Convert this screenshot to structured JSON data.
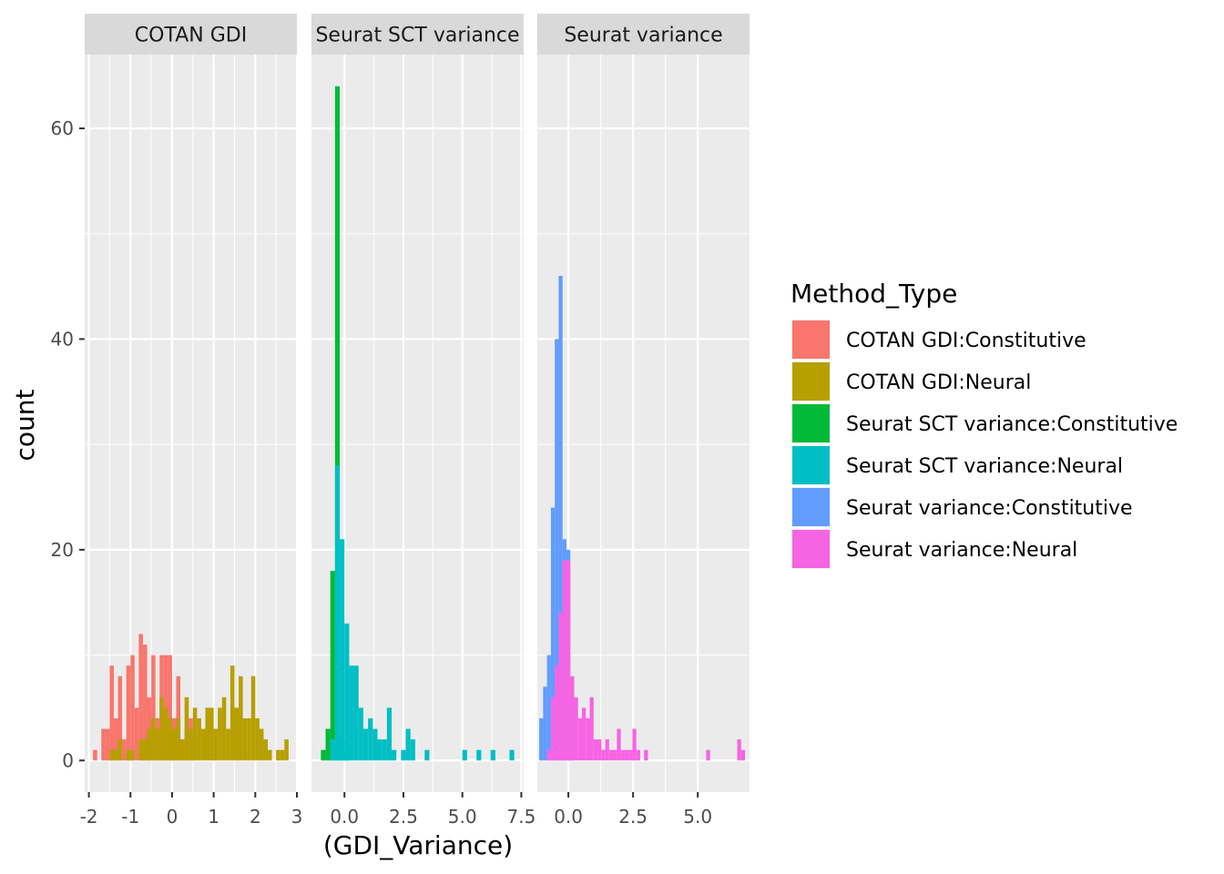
{
  "chart_data": {
    "type": "bar",
    "subtype": "faceted-histogram",
    "xlabel": "(GDI_Variance)",
    "ylabel": "count",
    "ylim": [
      -3,
      67
    ],
    "y_ticks": [
      0,
      20,
      40,
      60
    ],
    "y_tick_labels": [
      "0",
      "20",
      "40",
      "60"
    ],
    "grid": true,
    "legend": {
      "title": "Method_Type",
      "position": "right",
      "entries": [
        {
          "label": "COTAN GDI:Constitutive",
          "color": "#F8766D"
        },
        {
          "label": "COTAN GDI:Neural",
          "color": "#B79F00"
        },
        {
          "label": "Seurat SCT variance:Constitutive",
          "color": "#00BA38"
        },
        {
          "label": "Seurat SCT variance:Neural",
          "color": "#00BFC4"
        },
        {
          "label": "Seurat variance:Constitutive",
          "color": "#619CFF"
        },
        {
          "label": "Seurat variance:Neural",
          "color": "#F564E3"
        }
      ]
    },
    "facets": [
      {
        "name": "COTAN GDI",
        "xlim": [
          -2.1,
          3.0
        ],
        "x_ticks": [
          -2,
          -1,
          0,
          1,
          2,
          3
        ],
        "x_tick_labels": [
          "-2",
          "-1",
          "0",
          "1",
          "2",
          "3"
        ],
        "binwidth": 0.1,
        "series": [
          {
            "name": "COTAN GDI:Constitutive",
            "color": "#F8766D",
            "bins": [
              {
                "x": -1.85,
                "count": 1
              },
              {
                "x": -1.65,
                "count": 3
              },
              {
                "x": -1.55,
                "count": 3
              },
              {
                "x": -1.45,
                "count": 9
              },
              {
                "x": -1.35,
                "count": 4
              },
              {
                "x": -1.25,
                "count": 8
              },
              {
                "x": -1.15,
                "count": 2
              },
              {
                "x": -1.05,
                "count": 9
              },
              {
                "x": -0.95,
                "count": 10
              },
              {
                "x": -0.85,
                "count": 5
              },
              {
                "x": -0.75,
                "count": 12
              },
              {
                "x": -0.65,
                "count": 11
              },
              {
                "x": -0.55,
                "count": 6
              },
              {
                "x": -0.45,
                "count": 10
              },
              {
                "x": -0.35,
                "count": 4
              },
              {
                "x": -0.25,
                "count": 10
              },
              {
                "x": -0.15,
                "count": 10
              },
              {
                "x": -0.05,
                "count": 10
              },
              {
                "x": 0.05,
                "count": 4
              },
              {
                "x": 0.15,
                "count": 8
              },
              {
                "x": 0.25,
                "count": 2
              },
              {
                "x": 0.35,
                "count": 3
              },
              {
                "x": 0.45,
                "count": 4
              }
            ]
          },
          {
            "name": "COTAN GDI:Neural",
            "color": "#B79F00",
            "bins": [
              {
                "x": -1.45,
                "count": 1
              },
              {
                "x": -1.35,
                "count": 1
              },
              {
                "x": -1.25,
                "count": 2
              },
              {
                "x": -1.05,
                "count": 1
              },
              {
                "x": -0.95,
                "count": 1
              },
              {
                "x": -0.75,
                "count": 2
              },
              {
                "x": -0.65,
                "count": 2
              },
              {
                "x": -0.55,
                "count": 3
              },
              {
                "x": -0.45,
                "count": 4
              },
              {
                "x": -0.35,
                "count": 3
              },
              {
                "x": -0.25,
                "count": 6
              },
              {
                "x": -0.15,
                "count": 5
              },
              {
                "x": -0.05,
                "count": 4
              },
              {
                "x": 0.05,
                "count": 3
              },
              {
                "x": 0.15,
                "count": 4
              },
              {
                "x": 0.25,
                "count": 2
              },
              {
                "x": 0.35,
                "count": 6
              },
              {
                "x": 0.45,
                "count": 3
              },
              {
                "x": 0.55,
                "count": 5
              },
              {
                "x": 0.65,
                "count": 4
              },
              {
                "x": 0.75,
                "count": 3
              },
              {
                "x": 0.85,
                "count": 5
              },
              {
                "x": 0.95,
                "count": 5
              },
              {
                "x": 1.05,
                "count": 3
              },
              {
                "x": 1.15,
                "count": 5
              },
              {
                "x": 1.25,
                "count": 6
              },
              {
                "x": 1.35,
                "count": 3
              },
              {
                "x": 1.45,
                "count": 9
              },
              {
                "x": 1.55,
                "count": 5
              },
              {
                "x": 1.65,
                "count": 8
              },
              {
                "x": 1.75,
                "count": 4
              },
              {
                "x": 1.85,
                "count": 4
              },
              {
                "x": 1.95,
                "count": 8
              },
              {
                "x": 2.05,
                "count": 4
              },
              {
                "x": 2.15,
                "count": 3
              },
              {
                "x": 2.25,
                "count": 2
              },
              {
                "x": 2.35,
                "count": 1
              },
              {
                "x": 2.55,
                "count": 1
              },
              {
                "x": 2.65,
                "count": 1
              },
              {
                "x": 2.75,
                "count": 2
              }
            ]
          }
        ]
      },
      {
        "name": "Seurat SCT variance",
        "xlim": [
          -1.4,
          7.6
        ],
        "x_ticks": [
          0,
          2.5,
          5,
          7.5
        ],
        "x_tick_labels": [
          "0.0",
          "2.5",
          "5.0",
          "7.5"
        ],
        "binwidth": 0.2,
        "series": [
          {
            "name": "Seurat SCT variance:Constitutive",
            "color": "#00BA38",
            "bins": [
              {
                "x": -0.9,
                "count": 1
              },
              {
                "x": -0.7,
                "count": 3
              },
              {
                "x": -0.5,
                "count": 18
              },
              {
                "x": -0.3,
                "count": 64
              },
              {
                "x": -0.1,
                "count": 2
              },
              {
                "x": 0.1,
                "count": 1
              }
            ]
          },
          {
            "name": "Seurat SCT variance:Neural",
            "color": "#00BFC4",
            "bins": [
              {
                "x": -0.5,
                "count": 2
              },
              {
                "x": -0.3,
                "count": 28
              },
              {
                "x": -0.1,
                "count": 21
              },
              {
                "x": 0.1,
                "count": 13
              },
              {
                "x": 0.3,
                "count": 9
              },
              {
                "x": 0.5,
                "count": 9
              },
              {
                "x": 0.7,
                "count": 5
              },
              {
                "x": 0.9,
                "count": 3
              },
              {
                "x": 1.1,
                "count": 4
              },
              {
                "x": 1.3,
                "count": 3
              },
              {
                "x": 1.5,
                "count": 2
              },
              {
                "x": 1.7,
                "count": 2
              },
              {
                "x": 1.9,
                "count": 5
              },
              {
                "x": 2.1,
                "count": 1
              },
              {
                "x": 2.5,
                "count": 1
              },
              {
                "x": 2.7,
                "count": 3
              },
              {
                "x": 2.9,
                "count": 2
              },
              {
                "x": 3.5,
                "count": 1
              },
              {
                "x": 5.1,
                "count": 1
              },
              {
                "x": 5.7,
                "count": 1
              },
              {
                "x": 6.3,
                "count": 1
              },
              {
                "x": 7.1,
                "count": 1
              }
            ]
          }
        ]
      },
      {
        "name": "Seurat variance",
        "xlim": [
          -1.2,
          7.0
        ],
        "x_ticks": [
          0,
          2.5,
          5
        ],
        "x_tick_labels": [
          "0.0",
          "2.5",
          "5.0"
        ],
        "binwidth": 0.15,
        "series": [
          {
            "name": "Seurat variance:Constitutive",
            "color": "#619CFF",
            "bins": [
              {
                "x": -1.05,
                "count": 4
              },
              {
                "x": -0.9,
                "count": 7
              },
              {
                "x": -0.75,
                "count": 10
              },
              {
                "x": -0.6,
                "count": 24
              },
              {
                "x": -0.45,
                "count": 40
              },
              {
                "x": -0.3,
                "count": 46
              },
              {
                "x": -0.15,
                "count": 21
              },
              {
                "x": 0.0,
                "count": 20
              },
              {
                "x": 0.15,
                "count": 7
              }
            ]
          },
          {
            "name": "Seurat variance:Neural",
            "color": "#F564E3",
            "bins": [
              {
                "x": -0.75,
                "count": 1
              },
              {
                "x": -0.6,
                "count": 6
              },
              {
                "x": -0.45,
                "count": 9
              },
              {
                "x": -0.3,
                "count": 14
              },
              {
                "x": -0.15,
                "count": 19
              },
              {
                "x": 0.0,
                "count": 19
              },
              {
                "x": 0.15,
                "count": 8
              },
              {
                "x": 0.3,
                "count": 6
              },
              {
                "x": 0.45,
                "count": 4
              },
              {
                "x": 0.6,
                "count": 5
              },
              {
                "x": 0.75,
                "count": 4
              },
              {
                "x": 0.9,
                "count": 6
              },
              {
                "x": 1.05,
                "count": 2
              },
              {
                "x": 1.2,
                "count": 2
              },
              {
                "x": 1.35,
                "count": 1
              },
              {
                "x": 1.5,
                "count": 2
              },
              {
                "x": 1.65,
                "count": 1
              },
              {
                "x": 1.8,
                "count": 1
              },
              {
                "x": 1.95,
                "count": 3
              },
              {
                "x": 2.1,
                "count": 1
              },
              {
                "x": 2.25,
                "count": 1
              },
              {
                "x": 2.4,
                "count": 1
              },
              {
                "x": 2.55,
                "count": 3
              },
              {
                "x": 2.7,
                "count": 1
              },
              {
                "x": 3.0,
                "count": 1
              },
              {
                "x": 5.4,
                "count": 1
              },
              {
                "x": 6.6,
                "count": 2
              },
              {
                "x": 6.75,
                "count": 1
              }
            ]
          }
        ]
      }
    ]
  }
}
